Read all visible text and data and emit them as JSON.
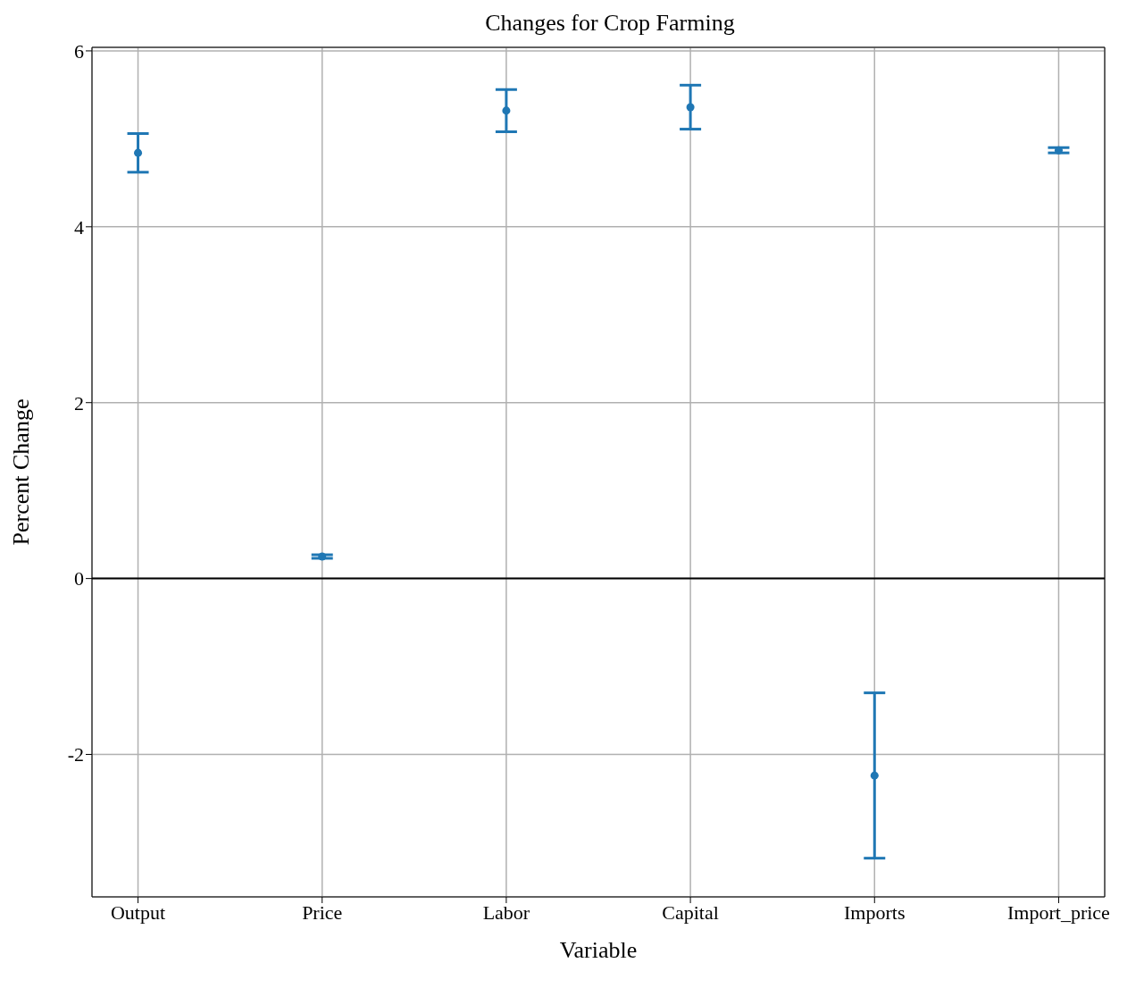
{
  "chart_data": {
    "type": "scatter",
    "title": "Changes for Crop Farming",
    "xlabel": "Variable",
    "ylabel": "Percent Change",
    "categories": [
      "Output",
      "Price",
      "Labor",
      "Capital",
      "Imports",
      "Import_price"
    ],
    "values": [
      4.84,
      0.25,
      5.32,
      5.36,
      -2.24,
      4.87
    ],
    "errors": [
      [
        4.62,
        5.06
      ],
      [
        0.23,
        0.27
      ],
      [
        5.08,
        5.56
      ],
      [
        5.11,
        5.61
      ],
      [
        -3.18,
        -1.3
      ],
      [
        4.84,
        4.9
      ]
    ],
    "color": "#1f77b4",
    "marker": "circle",
    "ylim": [
      -3.62,
      6.04
    ],
    "yticks": [
      -2,
      0,
      2,
      4,
      6
    ],
    "grid": true,
    "ref_lines": [
      {
        "axis": "y",
        "value": 0,
        "color": "#000000"
      }
    ]
  }
}
